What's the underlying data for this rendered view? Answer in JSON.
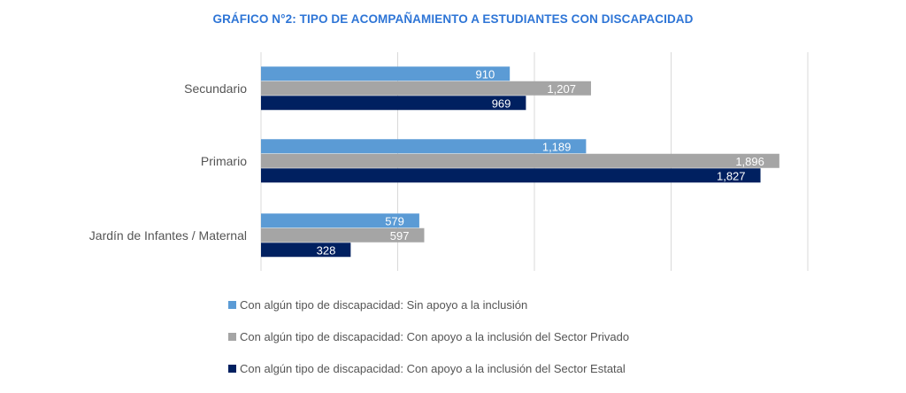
{
  "chart_data": {
    "type": "bar",
    "orientation": "horizontal",
    "title": "GRÁFICO N°2: TIPO DE ACOMPAÑAMIENTO A ESTUDIANTES CON DISCAPACIDAD",
    "categories": [
      "Secundario",
      "Primario",
      "Jardín de Infantes / Maternal"
    ],
    "series": [
      {
        "name": "Con algún tipo de discapacidad: Sin apoyo a la inclusión",
        "color": "#5b9bd5",
        "label_color": "#ffffff",
        "values": [
          910,
          1189,
          579
        ],
        "labels": [
          "910",
          "1,189",
          "579"
        ]
      },
      {
        "name": "Con algún tipo de discapacidad: Con apoyo a la inclusión del Sector Privado",
        "color": "#a5a5a5",
        "label_color": "#ffffff",
        "values": [
          1207,
          1896,
          597
        ],
        "labels": [
          "1,207",
          "1,896",
          "597"
        ]
      },
      {
        "name": "Con algún tipo de discapacidad: Con apoyo a la inclusión del Sector Estatal",
        "color": "#002060",
        "label_color": "#ffffff",
        "values": [
          969,
          1827,
          328
        ],
        "labels": [
          "969",
          "1,827",
          "328"
        ]
      }
    ],
    "xlim": [
      0,
      2000
    ],
    "gridlines": [
      0,
      500,
      1000,
      1500,
      2000
    ],
    "grid": true,
    "legend_position": "bottom",
    "xlabel": "",
    "ylabel": ""
  }
}
